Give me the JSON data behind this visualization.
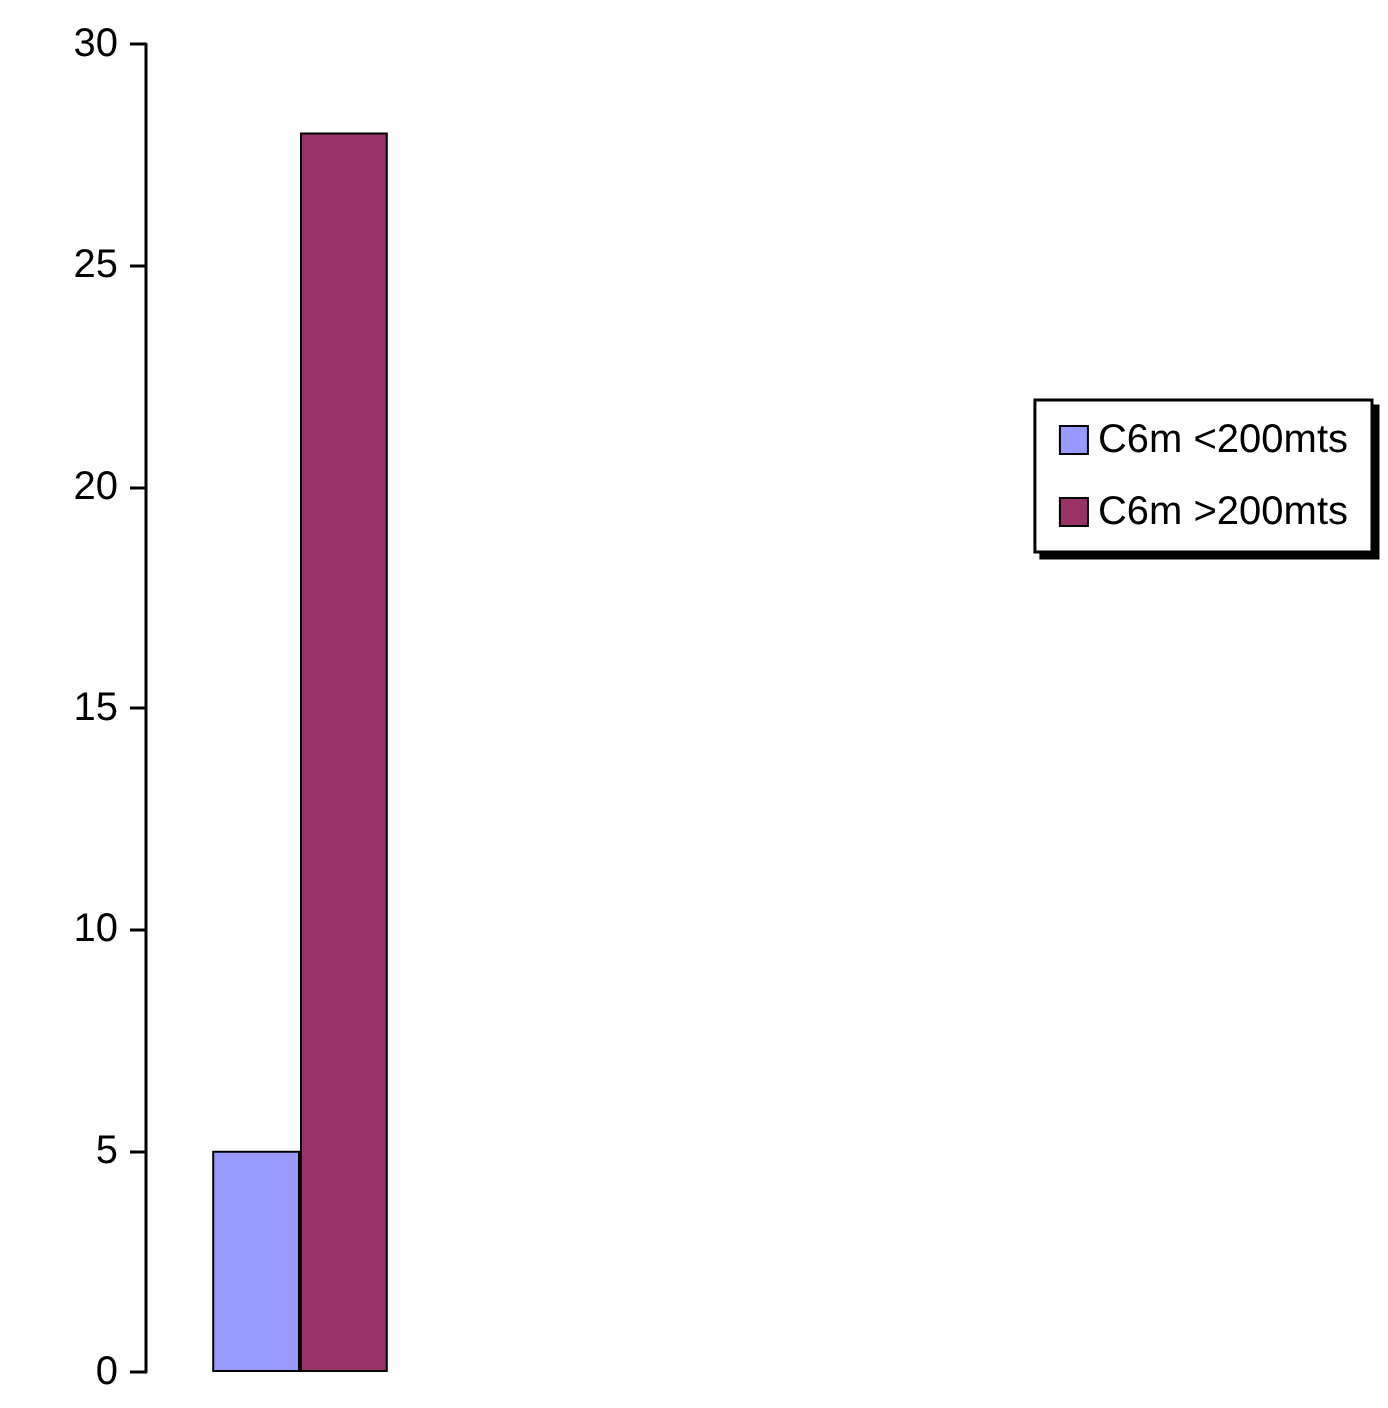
{
  "chart_data": {
    "type": "bar",
    "categories": [
      null
    ],
    "series": [
      {
        "name": "C6m <200mts",
        "color": "#9999ff",
        "values": [
          5
        ]
      },
      {
        "name": "C6m >200mts",
        "color": "#993366",
        "values": [
          28
        ]
      }
    ],
    "ylim": [
      0,
      30
    ],
    "yticks": [
      0,
      5,
      10,
      15,
      20,
      25,
      30
    ],
    "grid": false,
    "legend": "right"
  }
}
